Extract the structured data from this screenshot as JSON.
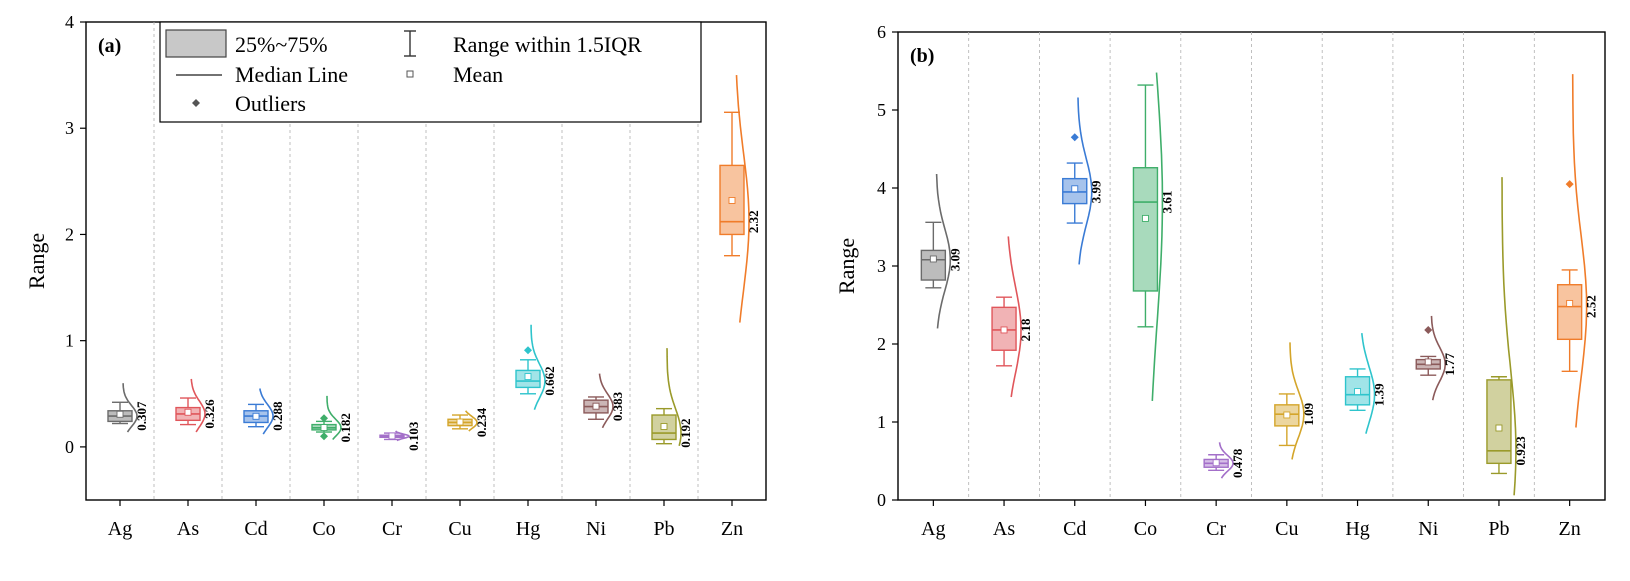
{
  "legend": {
    "box_label": "25%~75%",
    "range_label": "Range within 1.5IQR",
    "median_label": "Median Line",
    "mean_label": "Mean",
    "outlier_label": "Outliers"
  },
  "colors": {
    "Ag": "#6b6b6b",
    "As": "#e0565b",
    "Cd": "#3a7bd5",
    "Co": "#3fae6a",
    "Cr": "#a36fc9",
    "Cu": "#d4a52a",
    "Hg": "#2ec4cc",
    "Ni": "#8b5a5a",
    "Pb": "#9a9a2a",
    "Zn": "#f07c2a"
  },
  "chart_data": [
    {
      "type": "box",
      "panel_label": "(a)",
      "ylabel": "Range",
      "ylim": [
        -0.5,
        4
      ],
      "yticks": [
        0,
        1,
        2,
        3,
        4
      ],
      "categories": [
        "Ag",
        "As",
        "Cd",
        "Co",
        "Cr",
        "Cu",
        "Hg",
        "Ni",
        "Pb",
        "Zn"
      ],
      "boxes": [
        {
          "q1": 0.24,
          "median": 0.29,
          "q3": 0.34,
          "whisker_low": 0.22,
          "whisker_high": 0.42,
          "mean": 0.307,
          "mean_label": "0.307",
          "outliers": [],
          "dist_min": 0.14,
          "dist_max": 0.6
        },
        {
          "q1": 0.25,
          "median": 0.31,
          "q3": 0.37,
          "whisker_low": 0.21,
          "whisker_high": 0.46,
          "mean": 0.326,
          "mean_label": "0.326",
          "outliers": [],
          "dist_min": 0.14,
          "dist_max": 0.64
        },
        {
          "q1": 0.23,
          "median": 0.29,
          "q3": 0.34,
          "whisker_low": 0.19,
          "whisker_high": 0.4,
          "mean": 0.288,
          "mean_label": "0.288",
          "outliers": [],
          "dist_min": 0.12,
          "dist_max": 0.55
        },
        {
          "q1": 0.16,
          "median": 0.18,
          "q3": 0.21,
          "whisker_low": 0.14,
          "whisker_high": 0.24,
          "mean": 0.182,
          "mean_label": "0.182",
          "outliers": [
            0.27,
            0.1
          ],
          "dist_min": 0.07,
          "dist_max": 0.48
        },
        {
          "q1": 0.09,
          "median": 0.1,
          "q3": 0.11,
          "whisker_low": 0.07,
          "whisker_high": 0.13,
          "mean": 0.103,
          "mean_label": "0.103",
          "outliers": [],
          "dist_min": 0.06,
          "dist_max": 0.15
        },
        {
          "q1": 0.2,
          "median": 0.23,
          "q3": 0.26,
          "whisker_low": 0.17,
          "whisker_high": 0.3,
          "mean": 0.234,
          "mean_label": "0.234",
          "outliers": [],
          "dist_min": 0.15,
          "dist_max": 0.34
        },
        {
          "q1": 0.56,
          "median": 0.62,
          "q3": 0.72,
          "whisker_low": 0.5,
          "whisker_high": 0.82,
          "mean": 0.662,
          "mean_label": "0.662",
          "outliers": [
            0.91
          ],
          "dist_min": 0.35,
          "dist_max": 1.15
        },
        {
          "q1": 0.32,
          "median": 0.38,
          "q3": 0.44,
          "whisker_low": 0.26,
          "whisker_high": 0.47,
          "mean": 0.383,
          "mean_label": "0.383",
          "outliers": [],
          "dist_min": 0.18,
          "dist_max": 0.69
        },
        {
          "q1": 0.07,
          "median": 0.13,
          "q3": 0.3,
          "whisker_low": 0.03,
          "whisker_high": 0.36,
          "mean": 0.192,
          "mean_label": "0.192",
          "outliers": [],
          "dist_min": 0.01,
          "dist_max": 0.93
        },
        {
          "q1": 2.0,
          "median": 2.12,
          "q3": 2.65,
          "whisker_low": 1.8,
          "whisker_high": 3.15,
          "mean": 2.32,
          "mean_label": "2.32",
          "outliers": [],
          "dist_min": 1.17,
          "dist_max": 3.5
        }
      ]
    },
    {
      "type": "box",
      "panel_label": "(b)",
      "ylabel": "Range",
      "ylim": [
        0,
        6
      ],
      "yticks": [
        0,
        1,
        2,
        3,
        4,
        5,
        6
      ],
      "categories": [
        "Ag",
        "As",
        "Cd",
        "Co",
        "Cr",
        "Cu",
        "Hg",
        "Ni",
        "Pb",
        "Zn"
      ],
      "boxes": [
        {
          "q1": 2.82,
          "median": 3.08,
          "q3": 3.2,
          "whisker_low": 2.72,
          "whisker_high": 3.56,
          "mean": 3.09,
          "mean_label": "3.09",
          "outliers": [],
          "dist_min": 2.2,
          "dist_max": 4.18
        },
        {
          "q1": 1.92,
          "median": 2.18,
          "q3": 2.47,
          "whisker_low": 1.72,
          "whisker_high": 2.6,
          "mean": 2.18,
          "mean_label": "2.18",
          "outliers": [],
          "dist_min": 1.32,
          "dist_max": 3.38
        },
        {
          "q1": 3.8,
          "median": 3.95,
          "q3": 4.12,
          "whisker_low": 3.55,
          "whisker_high": 4.32,
          "mean": 3.99,
          "mean_label": "3.99",
          "outliers": [
            4.65
          ],
          "dist_min": 3.02,
          "dist_max": 5.16
        },
        {
          "q1": 2.68,
          "median": 3.82,
          "q3": 4.26,
          "whisker_low": 2.22,
          "whisker_high": 5.32,
          "mean": 3.61,
          "mean_label": "3.61",
          "outliers": [],
          "dist_min": 1.27,
          "dist_max": 5.48
        },
        {
          "q1": 0.42,
          "median": 0.47,
          "q3": 0.52,
          "whisker_low": 0.38,
          "whisker_high": 0.58,
          "mean": 0.478,
          "mean_label": "0.478",
          "outliers": [],
          "dist_min": 0.28,
          "dist_max": 0.74
        },
        {
          "q1": 0.95,
          "median": 1.1,
          "q3": 1.22,
          "whisker_low": 0.7,
          "whisker_high": 1.36,
          "mean": 1.09,
          "mean_label": "1.09",
          "outliers": [],
          "dist_min": 0.52,
          "dist_max": 2.02
        },
        {
          "q1": 1.22,
          "median": 1.35,
          "q3": 1.58,
          "whisker_low": 1.15,
          "whisker_high": 1.68,
          "mean": 1.39,
          "mean_label": "1.39",
          "outliers": [],
          "dist_min": 0.85,
          "dist_max": 2.14
        },
        {
          "q1": 1.68,
          "median": 1.74,
          "q3": 1.8,
          "whisker_low": 1.6,
          "whisker_high": 1.84,
          "mean": 1.77,
          "mean_label": "1.77",
          "outliers": [
            2.18
          ],
          "dist_min": 1.28,
          "dist_max": 2.36
        },
        {
          "q1": 0.47,
          "median": 0.63,
          "q3": 1.54,
          "whisker_low": 0.34,
          "whisker_high": 1.58,
          "mean": 0.923,
          "mean_label": "0.923",
          "outliers": [],
          "dist_min": 0.06,
          "dist_max": 4.14
        },
        {
          "q1": 2.06,
          "median": 2.48,
          "q3": 2.76,
          "whisker_low": 1.65,
          "whisker_high": 2.95,
          "mean": 2.52,
          "mean_label": "2.52",
          "outliers": [
            4.05
          ],
          "dist_min": 0.93,
          "dist_max": 5.46
        }
      ]
    }
  ]
}
